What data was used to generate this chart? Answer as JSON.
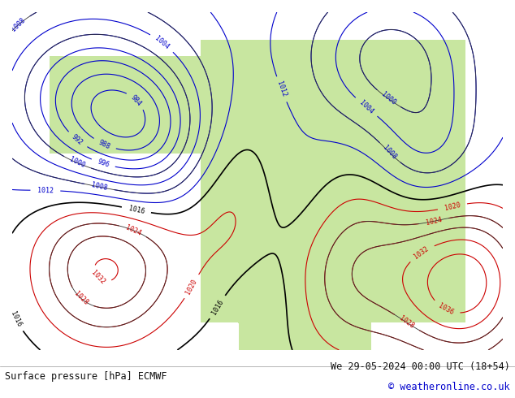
{
  "title_left": "Surface pressure [hPa] ECMWF",
  "title_right": "We 29-05-2024 00:00 UTC (18+54)",
  "copyright": "© weatheronline.co.uk",
  "bg_color": "#ffffff",
  "text_color_dark": "#222222",
  "text_color_blue": "#0000cc",
  "bottom_bar_color": "#e8e8e8",
  "figsize": [
    6.34,
    4.9
  ],
  "dpi": 100
}
